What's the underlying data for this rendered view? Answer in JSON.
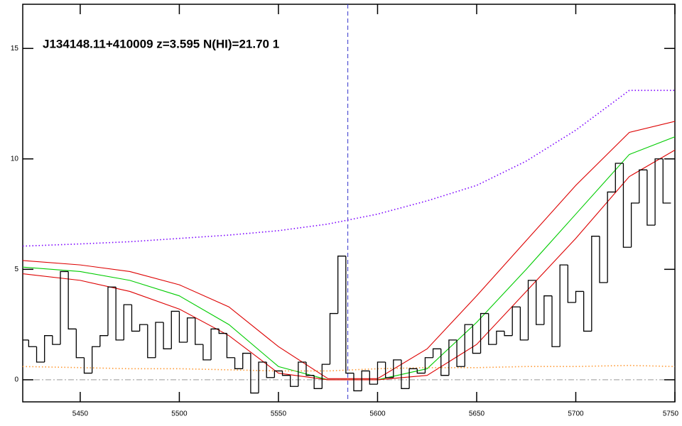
{
  "chart_data": {
    "type": "spectrum",
    "title": "J134148.11+410009 z=3.595 N(HI)=21.70 1",
    "xlim": [
      5421,
      5750
    ],
    "ylim": [
      -1,
      17
    ],
    "xticks": [
      5450,
      5500,
      5550,
      5600,
      5650,
      5700,
      5750
    ],
    "yticks": [
      0,
      5,
      10,
      15
    ],
    "zero_line": 0,
    "marker_x": 5585,
    "flux": {
      "color": "#000000",
      "bin_width": 4,
      "x": [
        5422,
        5426,
        5430,
        5434,
        5438,
        5442,
        5446,
        5450,
        5454,
        5458,
        5462,
        5466,
        5470,
        5474,
        5478,
        5482,
        5486,
        5490,
        5494,
        5498,
        5502,
        5506,
        5510,
        5514,
        5518,
        5522,
        5526,
        5530,
        5534,
        5538,
        5542,
        5546,
        5550,
        5554,
        5558,
        5562,
        5566,
        5570,
        5574,
        5578,
        5582,
        5586,
        5590,
        5594,
        5598,
        5602,
        5606,
        5610,
        5614,
        5618,
        5622,
        5626,
        5630,
        5634,
        5638,
        5642,
        5646,
        5650,
        5654,
        5658,
        5662,
        5666,
        5670,
        5674,
        5678,
        5682,
        5686,
        5690,
        5694,
        5698,
        5702,
        5706,
        5710,
        5714,
        5718,
        5722,
        5726,
        5730,
        5734,
        5738,
        5742,
        5746
      ],
      "values": [
        1.8,
        1.5,
        0.8,
        2.0,
        1.6,
        4.9,
        2.3,
        1.0,
        0.3,
        1.5,
        2.0,
        4.2,
        1.8,
        3.4,
        2.2,
        2.5,
        1.0,
        2.6,
        1.4,
        3.1,
        1.7,
        2.8,
        1.6,
        0.9,
        2.3,
        2.1,
        1.0,
        0.5,
        1.2,
        -0.6,
        0.8,
        0.1,
        0.4,
        0.2,
        -0.3,
        0.8,
        0.2,
        -0.4,
        0.7,
        3.0,
        5.6,
        0.3,
        -0.5,
        0.4,
        -0.2,
        0.8,
        0.1,
        0.9,
        -0.4,
        0.5,
        0.3,
        1.0,
        1.4,
        0.2,
        1.8,
        0.6,
        2.5,
        1.2,
        3.0,
        1.6,
        2.2,
        2.0,
        3.3,
        1.8,
        4.5,
        2.5,
        3.8,
        1.5,
        5.2,
        3.5,
        4.0,
        2.2,
        6.5,
        4.4,
        8.5,
        9.8,
        6.0,
        8.0,
        9.5,
        7.0,
        10.0,
        8.0
      ]
    },
    "series": [
      {
        "color": "#7b00ff",
        "dash": "dotted",
        "x": [
          5421,
          5450,
          5475,
          5500,
          5525,
          5550,
          5575,
          5600,
          5625,
          5650,
          5675,
          5700,
          5727,
          5750
        ],
        "values": [
          6.05,
          6.15,
          6.25,
          6.4,
          6.55,
          6.75,
          7.05,
          7.5,
          8.1,
          8.8,
          9.9,
          11.3,
          13.1,
          13.1
        ]
      },
      {
        "color": "#00cc00",
        "dash": "solid",
        "x": [
          5421,
          5450,
          5475,
          5500,
          5525,
          5550,
          5575,
          5600,
          5625,
          5650,
          5675,
          5700,
          5727,
          5750
        ],
        "values": [
          5.1,
          4.9,
          4.5,
          3.8,
          2.5,
          0.6,
          0.0,
          0.0,
          0.5,
          2.6,
          5.0,
          7.5,
          10.2,
          11.0
        ]
      },
      {
        "color": "#dd0000",
        "dash": "solid",
        "x": [
          5421,
          5450,
          5475,
          5500,
          5525,
          5550,
          5575,
          5600,
          5625,
          5650,
          5675,
          5700,
          5727,
          5750
        ],
        "values": [
          5.4,
          5.2,
          4.9,
          4.3,
          3.3,
          1.5,
          0.05,
          0.05,
          1.4,
          3.8,
          6.3,
          8.8,
          11.2,
          11.7
        ]
      },
      {
        "color": "#dd0000",
        "dash": "solid",
        "x": [
          5421,
          5450,
          5475,
          5500,
          5525,
          5550,
          5575,
          5600,
          5625,
          5650,
          5675,
          5700,
          5727,
          5750
        ],
        "values": [
          4.8,
          4.5,
          4.0,
          3.2,
          2.0,
          0.3,
          0.0,
          0.0,
          0.2,
          1.6,
          4.0,
          6.4,
          9.2,
          10.4
        ]
      },
      {
        "color": "#ff9933",
        "dash": "dotted",
        "x": [
          5421,
          5450,
          5475,
          5500,
          5525,
          5550,
          5575,
          5600,
          5625,
          5650,
          5675,
          5700,
          5727,
          5750
        ],
        "values": [
          0.6,
          0.55,
          0.5,
          0.5,
          0.45,
          0.4,
          0.4,
          0.5,
          0.55,
          0.55,
          0.6,
          0.6,
          0.65,
          0.6
        ]
      }
    ]
  }
}
